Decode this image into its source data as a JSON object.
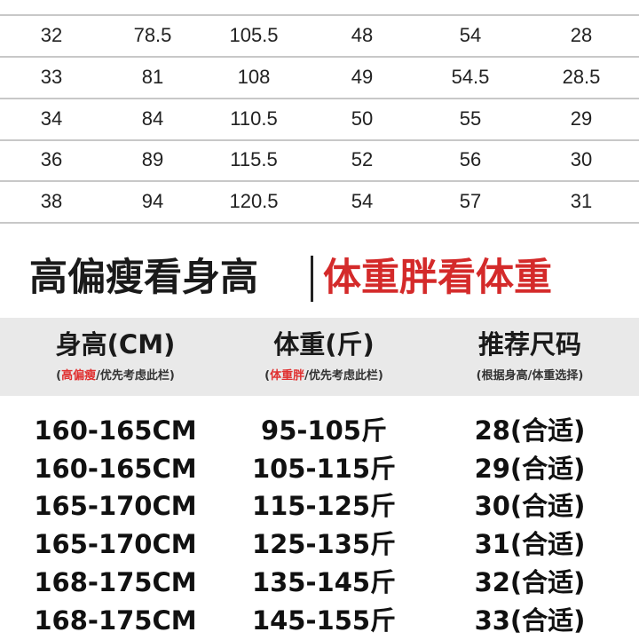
{
  "size_table": {
    "rows": [
      [
        "32",
        "78.5",
        "105.5",
        "48",
        "54",
        "28"
      ],
      [
        "33",
        "81",
        "108",
        "49",
        "54.5",
        "28.5"
      ],
      [
        "34",
        "84",
        "110.5",
        "50",
        "55",
        "29"
      ],
      [
        "36",
        "89",
        "115.5",
        "52",
        "56",
        "30"
      ],
      [
        "38",
        "94",
        "120.5",
        "54",
        "57",
        "31"
      ]
    ]
  },
  "heading": {
    "left": "高偏瘦看身高",
    "right": "体重胖看体重",
    "accent_color": "#d42a2a"
  },
  "recommend": {
    "headers": [
      {
        "title": "身高(CM)",
        "note_red": "高偏瘦",
        "note": "/优先考虑此栏"
      },
      {
        "title": "体重(斤)",
        "note_red": "体重胖",
        "note": "/优先考虑此栏"
      },
      {
        "title": "推荐尺码",
        "note_open": "(",
        "note": "根据身高/体重选择"
      }
    ],
    "rows": [
      [
        "160-165CM",
        "95-105斤",
        "28(合适)"
      ],
      [
        "160-165CM",
        "105-115斤",
        "29(合适)"
      ],
      [
        "165-170CM",
        "115-125斤",
        "30(合适)"
      ],
      [
        "165-170CM",
        "125-135斤",
        "31(合适)"
      ],
      [
        "168-175CM",
        "135-145斤",
        "32(合适)"
      ],
      [
        "168-175CM",
        "145-155斤",
        "33(合适)"
      ]
    ]
  }
}
